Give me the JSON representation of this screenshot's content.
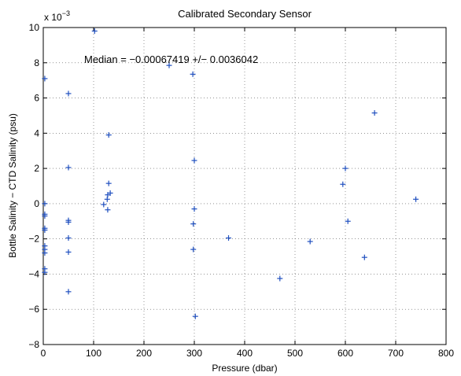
{
  "chart_data": {
    "type": "scatter",
    "title": "Calibrated Secondary Sensor",
    "xlabel": "Pressure (dbar)",
    "ylabel": "Bottle Salinity − CTD Salinity (psu)",
    "xlim": [
      0,
      800
    ],
    "ylim": [
      -8,
      10
    ],
    "x_ticks": [
      0,
      100,
      200,
      300,
      400,
      500,
      600,
      700,
      800
    ],
    "y_ticks": [
      -8,
      -6,
      -4,
      -2,
      0,
      2,
      4,
      6,
      8,
      10
    ],
    "y_multiplier_label": "x 10",
    "y_multiplier_exponent": "−3",
    "grid": true,
    "marker": "+",
    "color": "#1f4fbf",
    "annotation": "Median = −0.00067419 +/− 0.0036042",
    "points": [
      {
        "x": 3,
        "y": 7.1
      },
      {
        "x": 3,
        "y": 0.0
      },
      {
        "x": 3,
        "y": -0.6
      },
      {
        "x": 3,
        "y": -0.7
      },
      {
        "x": 3,
        "y": -1.4
      },
      {
        "x": 3,
        "y": -1.5
      },
      {
        "x": 3,
        "y": -2.4
      },
      {
        "x": 3,
        "y": -2.6
      },
      {
        "x": 3,
        "y": -2.8
      },
      {
        "x": 3,
        "y": -3.7
      },
      {
        "x": 3,
        "y": -3.9
      },
      {
        "x": 50,
        "y": 6.25
      },
      {
        "x": 50,
        "y": 2.05
      },
      {
        "x": 50,
        "y": -0.95
      },
      {
        "x": 50,
        "y": -1.05
      },
      {
        "x": 50,
        "y": -1.95
      },
      {
        "x": 50,
        "y": -2.75
      },
      {
        "x": 50,
        "y": -5.0
      },
      {
        "x": 102,
        "y": 9.8
      },
      {
        "x": 120,
        "y": -0.05
      },
      {
        "x": 127,
        "y": 0.25
      },
      {
        "x": 128,
        "y": 0.5
      },
      {
        "x": 128,
        "y": -0.35
      },
      {
        "x": 130,
        "y": 3.9
      },
      {
        "x": 130,
        "y": 1.15
      },
      {
        "x": 133,
        "y": 0.6
      },
      {
        "x": 250,
        "y": 7.85
      },
      {
        "x": 297,
        "y": 7.35
      },
      {
        "x": 298,
        "y": -1.15
      },
      {
        "x": 298,
        "y": -2.6
      },
      {
        "x": 300,
        "y": 2.45
      },
      {
        "x": 300,
        "y": -0.3
      },
      {
        "x": 302,
        "y": -6.4
      },
      {
        "x": 368,
        "y": -1.95
      },
      {
        "x": 470,
        "y": -4.25
      },
      {
        "x": 530,
        "y": -2.15
      },
      {
        "x": 595,
        "y": 1.1
      },
      {
        "x": 600,
        "y": 2.0
      },
      {
        "x": 605,
        "y": -1.0
      },
      {
        "x": 638,
        "y": -3.05
      },
      {
        "x": 658,
        "y": 5.15
      },
      {
        "x": 740,
        "y": 0.25
      }
    ]
  }
}
